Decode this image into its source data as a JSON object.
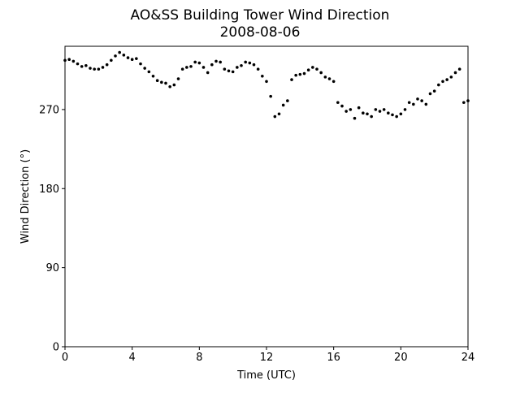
{
  "chart_data": {
    "type": "scatter",
    "title": "AO&SS Building Tower Wind Direction",
    "subtitle": "2008-08-06",
    "xlabel": "Time (UTC)",
    "ylabel": "Wind Direction (°)",
    "color": "#000000",
    "xlim": [
      0,
      24
    ],
    "xticks": [
      0,
      4,
      8,
      12,
      16,
      20,
      24
    ],
    "ylim": [
      0,
      342
    ],
    "yticks": [
      0,
      90,
      180,
      270
    ],
    "series": [
      {
        "name": "Wind Direction",
        "color": "#000000",
        "x": [
          0,
          0.25,
          0.5,
          0.75,
          1,
          1.25,
          1.5,
          1.75,
          2,
          2.25,
          2.5,
          2.75,
          3,
          3.25,
          3.5,
          3.75,
          4,
          4.25,
          4.5,
          4.75,
          5,
          5.25,
          5.5,
          5.75,
          6,
          6.25,
          6.5,
          6.75,
          7,
          7.25,
          7.5,
          7.75,
          8,
          8.25,
          8.5,
          8.75,
          9,
          9.25,
          9.5,
          9.75,
          10,
          10.25,
          10.5,
          10.75,
          11,
          11.25,
          11.5,
          11.75,
          12,
          12.25,
          12.5,
          12.75,
          13,
          13.25,
          13.5,
          13.75,
          14,
          14.25,
          14.5,
          14.75,
          15,
          15.25,
          15.5,
          15.75,
          16,
          16.25,
          16.5,
          16.75,
          17,
          17.25,
          17.5,
          17.75,
          18,
          18.25,
          18.5,
          18.75,
          19,
          19.25,
          19.5,
          19.75,
          20,
          20.25,
          20.5,
          20.75,
          21,
          21.25,
          21.5,
          21.75,
          22,
          22.25,
          22.5,
          22.75,
          23,
          23.25,
          23.5,
          23.75,
          24
        ],
        "values": [
          326,
          327,
          325,
          322,
          319,
          320,
          317,
          316,
          316,
          318,
          321,
          326,
          331,
          335,
          332,
          329,
          327,
          328,
          322,
          317,
          313,
          308,
          303,
          301,
          300,
          296,
          298,
          305,
          316,
          318,
          319,
          324,
          323,
          318,
          312,
          321,
          325,
          324,
          316,
          314,
          313,
          318,
          320,
          324,
          323,
          321,
          316,
          308,
          302,
          285,
          262,
          265,
          275,
          280,
          304,
          309,
          310,
          311,
          315,
          318,
          316,
          312,
          307,
          305,
          302,
          278,
          274,
          268,
          270,
          260,
          272,
          266,
          265,
          262,
          270,
          268,
          270,
          266,
          264,
          262,
          265,
          270,
          278,
          276,
          282,
          280,
          276,
          288,
          291,
          298,
          302,
          304,
          307,
          312,
          316,
          278,
          280
        ]
      }
    ]
  }
}
